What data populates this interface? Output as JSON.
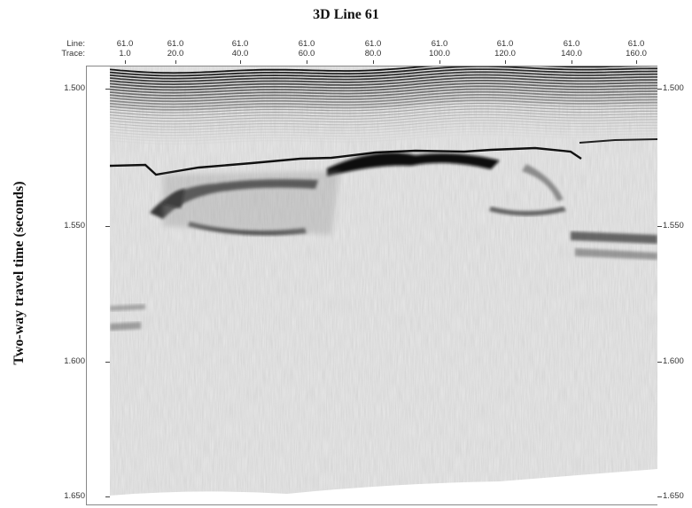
{
  "title": "3D Line 61",
  "ylabel": "Two-way travel time (seconds)",
  "header": {
    "line_key": "Line:",
    "trace_key": "Trace:",
    "columns": [
      {
        "line": "61.0",
        "trace": "1.0"
      },
      {
        "line": "61.0",
        "trace": "20.0"
      },
      {
        "line": "61.0",
        "trace": "40.0"
      },
      {
        "line": "61.0",
        "trace": "60.0"
      },
      {
        "line": "61.0",
        "trace": "80.0"
      },
      {
        "line": "61.0",
        "trace": "100.0"
      },
      {
        "line": "61.0",
        "trace": "120.0"
      },
      {
        "line": "61.0",
        "trace": "140.0"
      },
      {
        "line": "61.0",
        "trace": "160.0"
      }
    ]
  },
  "time_axis": {
    "ticks": [
      "1.500",
      "1.550",
      "1.600",
      "1.650"
    ]
  },
  "image": {
    "description_colors": {
      "background": "#ffffff",
      "reflector": "#111111",
      "noise": "#c8c8c8"
    }
  }
}
